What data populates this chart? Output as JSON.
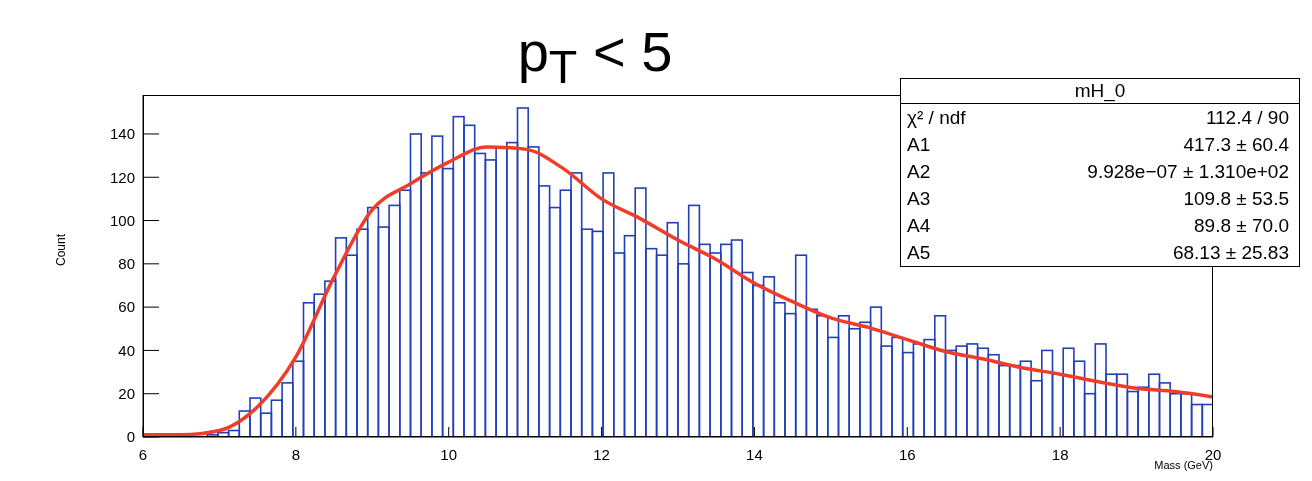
{
  "chart_data": {
    "type": "histogram",
    "title": "p$_{T}$ < 5",
    "xlabel": "Mass (GeV)",
    "ylabel": "Count",
    "bins": [
      6,
      6.14,
      6.28,
      6.42,
      6.56,
      6.7,
      6.84,
      6.98,
      7.12,
      7.26,
      7.4,
      7.54,
      7.68,
      7.82,
      7.96,
      8.1,
      8.24,
      8.38,
      8.52,
      8.66,
      8.8,
      8.94,
      9.08,
      9.22,
      9.36,
      9.5,
      9.64,
      9.78,
      9.92,
      10.06,
      10.2,
      10.34,
      10.48,
      10.62,
      10.76,
      10.9,
      11.04,
      11.18,
      11.32,
      11.46,
      11.6,
      11.74,
      11.88,
      12.02,
      12.16,
      12.3,
      12.44,
      12.58,
      12.72,
      12.86,
      13,
      13.14,
      13.28,
      13.42,
      13.56,
      13.7,
      13.84,
      13.98,
      14.12,
      14.26,
      14.4,
      14.54,
      14.68,
      14.82,
      14.96,
      15.1,
      15.24,
      15.38,
      15.52,
      15.66,
      15.8,
      15.94,
      16.08,
      16.22,
      16.36,
      16.5,
      16.64,
      16.78,
      16.92,
      17.06,
      17.2,
      17.34,
      17.48,
      17.62,
      17.76,
      17.9,
      18.04,
      18.18,
      18.32,
      18.46,
      18.6,
      18.74,
      18.88,
      19.02,
      19.16,
      19.3,
      19.44,
      19.58,
      19.72,
      19.86,
      20
    ],
    "values": [
      0,
      0,
      0,
      0,
      0,
      0,
      1,
      2,
      3,
      12,
      18,
      11,
      17,
      25,
      35,
      62,
      66,
      72,
      92,
      84,
      96,
      106,
      97,
      107,
      114,
      140,
      122,
      139,
      124,
      148,
      144,
      131,
      128,
      134,
      136,
      152,
      134,
      116,
      106,
      114,
      122,
      96,
      95,
      122,
      85,
      93,
      115,
      87,
      84,
      99,
      80,
      107,
      89,
      85,
      89,
      91,
      76,
      70,
      74,
      62,
      57,
      84,
      59,
      56,
      46,
      56,
      50,
      53,
      60,
      42,
      46,
      39,
      43,
      45,
      56,
      40,
      42,
      43,
      41,
      38,
      33,
      33,
      35,
      26,
      40,
      29,
      41,
      35,
      20,
      43,
      29,
      29,
      21,
      23,
      29,
      25,
      20,
      20,
      15,
      15
    ],
    "color": "#2040b8",
    "series": [
      {
        "type": "line",
        "color": "#f03c28",
        "x": [
          6,
          6.5,
          7,
          7.5,
          8,
          8.5,
          9,
          9.5,
          10,
          10.5,
          11,
          11.5,
          12,
          12.5,
          13,
          13.5,
          14,
          14.5,
          15,
          15.5,
          16,
          16.5,
          17,
          17.5,
          18,
          18.5,
          19,
          19.5,
          20
        ],
        "values": [
          1,
          1,
          3,
          14,
          37,
          74,
          105,
          117,
          127,
          134,
          133,
          124,
          110,
          101,
          91,
          82,
          71,
          62.5,
          55,
          50.5,
          45,
          39.5,
          36,
          32,
          29,
          25.5,
          22.5,
          21,
          18.5
        ]
      }
    ],
    "xlim": [
      6,
      20
    ],
    "xticks": [
      6,
      8,
      10,
      12,
      14,
      16,
      18,
      20
    ],
    "ylim": [
      0,
      158
    ],
    "yticks": [
      0,
      20,
      40,
      60,
      80,
      100,
      120,
      140
    ],
    "grid": false,
    "legend": false,
    "annotations": [
      "mH_0",
      "χ² / ndf",
      "112.4 / 90",
      "A1",
      "417.3 ± 60.4",
      "A2",
      "9.928e−07 ± 1.310e+02",
      "A3",
      "109.8 ± 53.5",
      "A4",
      "89.8 ± 70.0",
      "A5",
      "68.13 ± 25.83"
    ]
  }
}
